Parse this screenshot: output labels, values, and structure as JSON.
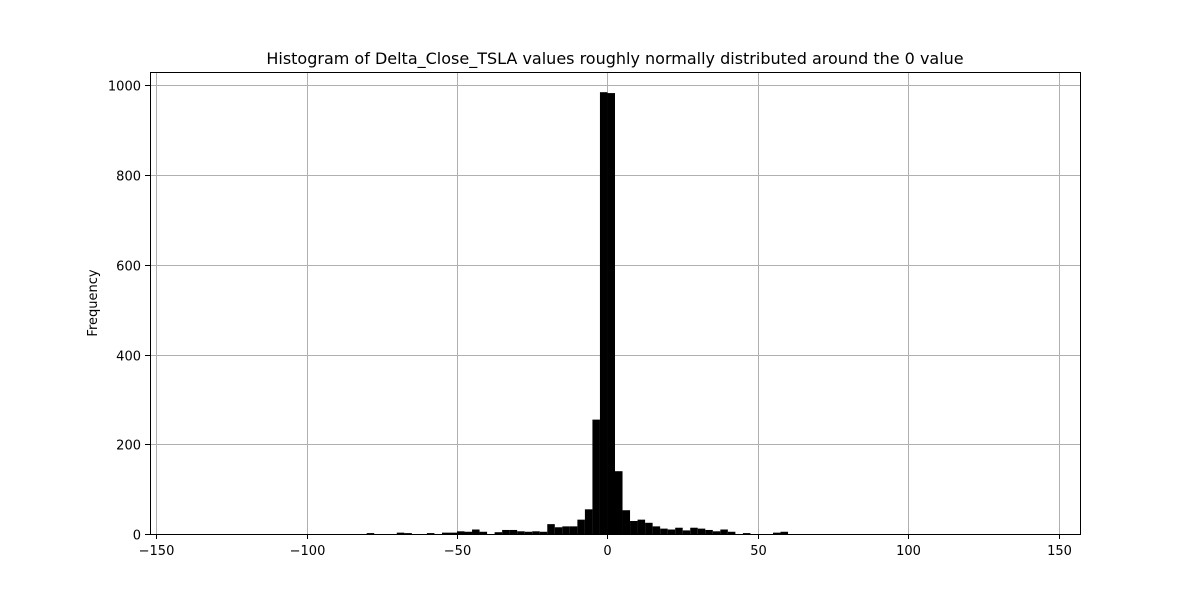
{
  "chart_data": {
    "type": "bar",
    "title": "Histogram of Delta_Close_TSLA values roughly normally distributed around the 0 value",
    "xlabel": "",
    "ylabel": "Frequency",
    "xlim": [
      -152,
      157
    ],
    "ylim": [
      0,
      1030
    ],
    "xticks": [
      -150,
      -100,
      -50,
      0,
      50,
      100,
      150
    ],
    "yticks": [
      0,
      200,
      400,
      600,
      800,
      1000
    ],
    "grid": true,
    "bar_color": "#000000",
    "bin_width": 2.5,
    "bins": [
      {
        "x": -80,
        "count": 2
      },
      {
        "x": -70,
        "count": 3
      },
      {
        "x": -67.5,
        "count": 2
      },
      {
        "x": -60,
        "count": 2
      },
      {
        "x": -55,
        "count": 3
      },
      {
        "x": -52.5,
        "count": 3
      },
      {
        "x": -50,
        "count": 6
      },
      {
        "x": -47.5,
        "count": 5
      },
      {
        "x": -45,
        "count": 10
      },
      {
        "x": -42.5,
        "count": 5
      },
      {
        "x": -37.5,
        "count": 4
      },
      {
        "x": -35,
        "count": 9
      },
      {
        "x": -32.5,
        "count": 9
      },
      {
        "x": -30,
        "count": 6
      },
      {
        "x": -27.5,
        "count": 5
      },
      {
        "x": -25,
        "count": 6
      },
      {
        "x": -22.5,
        "count": 5
      },
      {
        "x": -20,
        "count": 22
      },
      {
        "x": -17.5,
        "count": 15
      },
      {
        "x": -15,
        "count": 17
      },
      {
        "x": -12.5,
        "count": 17
      },
      {
        "x": -10,
        "count": 32
      },
      {
        "x": -7.5,
        "count": 55
      },
      {
        "x": -5,
        "count": 255
      },
      {
        "x": -2.5,
        "count": 985
      },
      {
        "x": 0,
        "count": 983
      },
      {
        "x": 2.5,
        "count": 140
      },
      {
        "x": 5,
        "count": 53
      },
      {
        "x": 7.5,
        "count": 29
      },
      {
        "x": 10,
        "count": 32
      },
      {
        "x": 12.5,
        "count": 25
      },
      {
        "x": 15,
        "count": 17
      },
      {
        "x": 17.5,
        "count": 12
      },
      {
        "x": 20,
        "count": 10
      },
      {
        "x": 22.5,
        "count": 14
      },
      {
        "x": 25,
        "count": 8
      },
      {
        "x": 27.5,
        "count": 14
      },
      {
        "x": 30,
        "count": 12
      },
      {
        "x": 32.5,
        "count": 9
      },
      {
        "x": 35,
        "count": 6
      },
      {
        "x": 37.5,
        "count": 10
      },
      {
        "x": 40,
        "count": 5
      },
      {
        "x": 45,
        "count": 2
      },
      {
        "x": 55,
        "count": 3
      },
      {
        "x": 57.5,
        "count": 5
      }
    ]
  }
}
